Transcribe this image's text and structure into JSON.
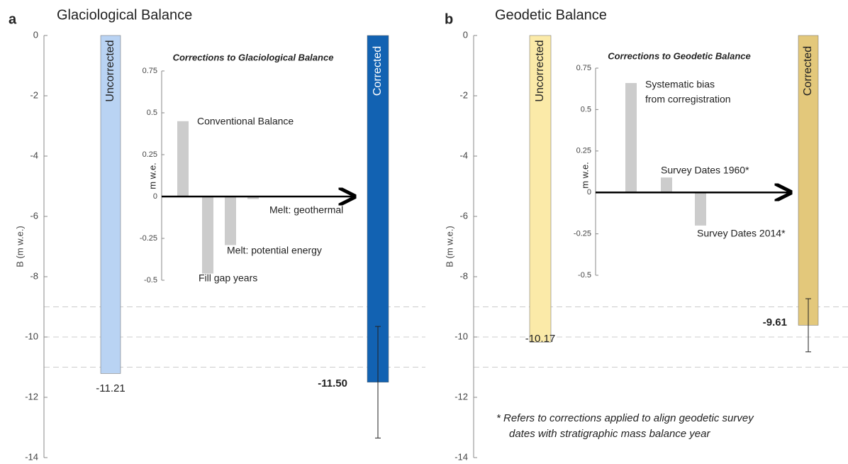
{
  "chart_data": [
    {
      "type": "bar",
      "panel": "a",
      "title": "Glaciological Balance",
      "ylabel": "B (m w.e.)",
      "categories": [
        "Uncorrected",
        "Corrected"
      ],
      "values": [
        -11.21,
        -11.5
      ],
      "value_labels": [
        "-11.21",
        "-11.50"
      ],
      "errors": [
        null,
        1.85
      ],
      "colors": [
        "#b9d3f3",
        "#1262b2"
      ],
      "label_colors": [
        "#222222",
        "#ffffff"
      ],
      "ylim": [
        -14,
        0
      ],
      "yticks": [
        0,
        -2,
        -4,
        -6,
        -8,
        -10,
        -12,
        -14
      ],
      "hlines": [
        -9,
        -10,
        -11
      ]
    },
    {
      "type": "bar",
      "title": "Corrections to Glaciological Balance",
      "ylabel": "m w.e.",
      "categories": [
        [
          "Conventional Balance"
        ],
        [
          "Fill gap years"
        ],
        [
          "Melt: potential energy"
        ],
        [
          "Melt: geothermal"
        ]
      ],
      "values": [
        0.45,
        -0.46,
        -0.29,
        -0.015
      ],
      "color": "#cccccc",
      "ylim": [
        -0.5,
        0.75
      ],
      "yticks": [
        0.75,
        0.5,
        0.25,
        0,
        -0.25,
        -0.5
      ]
    },
    {
      "type": "bar",
      "panel": "b",
      "title": "Geodetic Balance",
      "ylabel": "B (m w.e.)",
      "categories": [
        "Uncorrected",
        "Corrected"
      ],
      "values": [
        -10.17,
        -9.61
      ],
      "value_labels": [
        "-10.17",
        "-9.61"
      ],
      "errors": [
        null,
        0.88
      ],
      "colors": [
        "#fbeaa8",
        "#e3c87b"
      ],
      "label_colors": [
        "#222222",
        "#222222"
      ],
      "ylim": [
        -14,
        0
      ],
      "yticks": [
        0,
        -2,
        -4,
        -6,
        -8,
        -10,
        -12,
        -14
      ],
      "hlines": [
        -9,
        -10,
        -11
      ],
      "note": [
        "* Refers to corrections applied to align geodetic survey",
        "dates with stratigraphic mass balance year"
      ]
    },
    {
      "type": "bar",
      "title": "Corrections to Geodetic Balance",
      "ylabel": "m w.e.",
      "categories": [
        [
          "Systematic bias",
          "from corregistration"
        ],
        [
          "Survey Dates 1960*"
        ],
        [
          "Survey Dates 2014*"
        ]
      ],
      "values": [
        0.66,
        0.09,
        -0.2
      ],
      "color": "#cccccc",
      "ylim": [
        -0.5,
        0.75
      ],
      "yticks": [
        0.75,
        0.5,
        0.25,
        0,
        -0.25,
        -0.5
      ]
    }
  ]
}
